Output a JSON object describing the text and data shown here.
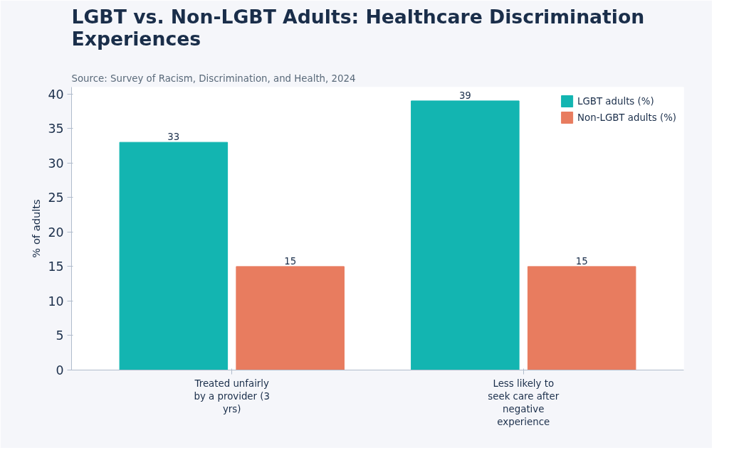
{
  "chart_data": {
    "type": "bar",
    "title": "LGBT vs. Non-LGBT Adults: Healthcare Discrimination Experiences",
    "subtitle": "Source: Survey of Racism, Discrimination, and Health, 2024",
    "ylabel": "% of adults",
    "categories": [
      "Treated unfairly by a provider (3 yrs)",
      "Less likely to seek care after negative experience"
    ],
    "series": [
      {
        "name": "LGBT adults (%)",
        "color": "#13b5b1",
        "values": [
          33,
          39
        ]
      },
      {
        "name": "Non-LGBT adults (%)",
        "color": "#e87c5f",
        "values": [
          15,
          15
        ]
      }
    ],
    "ylim": [
      0,
      41
    ],
    "yticks": [
      0,
      5,
      10,
      15,
      20,
      25,
      30,
      35,
      40
    ],
    "grid": false,
    "legend": "top right",
    "data_labels": true
  }
}
